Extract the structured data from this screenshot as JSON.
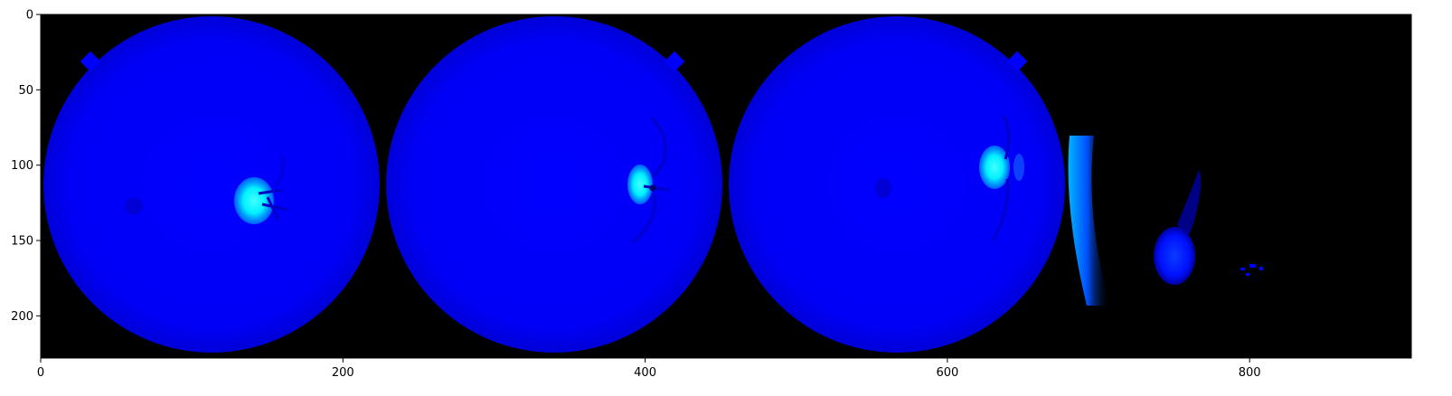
{
  "figure": {
    "background": "#ffffff",
    "image_background": "#000000",
    "fundus_color": "#0000ff",
    "optic_disc_color": "#00e6ff",
    "x_extent": [
      0,
      907
    ],
    "y_extent": [
      0,
      228
    ],
    "x_ticks": [
      {
        "value": 0,
        "label": "0"
      },
      {
        "value": 200,
        "label": "200"
      },
      {
        "value": 400,
        "label": "400"
      },
      {
        "value": 600,
        "label": "600"
      },
      {
        "value": 800,
        "label": "800"
      }
    ],
    "y_ticks": [
      {
        "value": 0,
        "label": "0"
      },
      {
        "value": 50,
        "label": "50"
      },
      {
        "value": 100,
        "label": "100"
      },
      {
        "value": 150,
        "label": "150"
      },
      {
        "value": 200,
        "label": "200"
      }
    ]
  }
}
